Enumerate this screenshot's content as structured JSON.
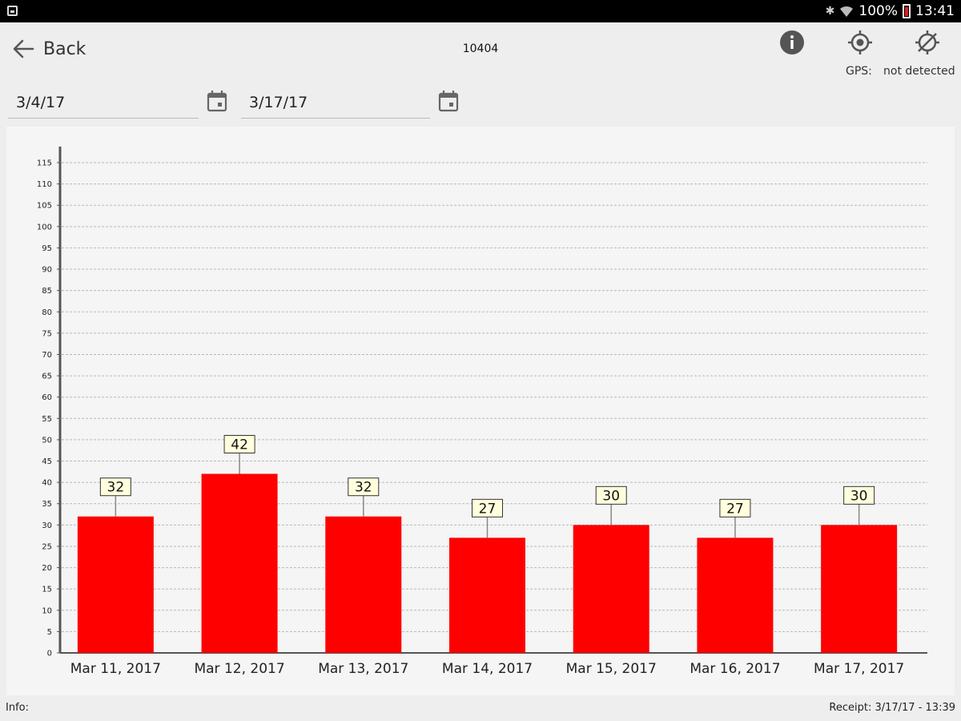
{
  "status_bar": {
    "battery": "100%",
    "time": "13:41"
  },
  "header": {
    "back_label": "Back",
    "title": "10404",
    "gps_label": "GPS:",
    "gps_status": "not detected"
  },
  "filters": {
    "start_date": "3/4/17",
    "end_date": "3/17/17"
  },
  "footer": {
    "info_label": "Info:",
    "receipt": "Receipt:   3/17/17 - 13:39"
  },
  "colors": {
    "bar": "#ff0000",
    "label_bg": "#ffffdd"
  },
  "chart_data": {
    "type": "bar",
    "categories": [
      "Mar 11, 2017",
      "Mar 12, 2017",
      "Mar 13, 2017",
      "Mar 14, 2017",
      "Mar 15, 2017",
      "Mar 16, 2017",
      "Mar 17, 2017"
    ],
    "values": [
      32,
      42,
      32,
      27,
      30,
      27,
      30
    ],
    "ylim": [
      0,
      115
    ],
    "ytick_step": 5,
    "grid": true,
    "title": "",
    "xlabel": "",
    "ylabel": ""
  }
}
